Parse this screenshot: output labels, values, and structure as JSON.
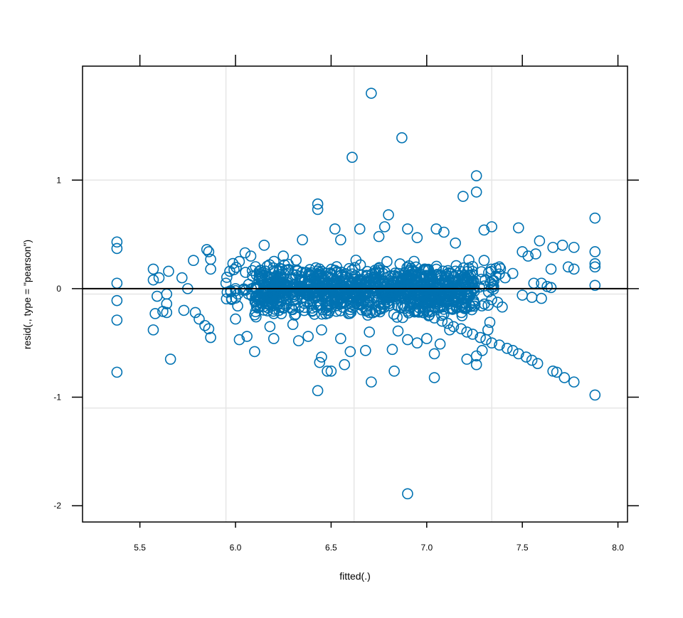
{
  "chart_data": {
    "type": "scatter",
    "title": "",
    "xlabel": "fitted(.)",
    "ylabel": "resid(., type = \"pearson\")",
    "xlim": [
      5.2,
      8.05
    ],
    "ylim": [
      -2.15,
      2.05
    ],
    "x_ticks": [
      5.5,
      6.0,
      6.5,
      7.0,
      7.5,
      8.0
    ],
    "x_tick_labels": [
      "5.5",
      "6.0",
      "6.5",
      "7.0",
      "7.5",
      "8.0"
    ],
    "y_ticks": [
      -2,
      -1,
      0,
      1
    ],
    "y_tick_labels": [
      "-2",
      "-1",
      "0",
      "1"
    ],
    "x_grid": [
      5.95,
      6.62,
      7.34
    ],
    "y_grid": [
      -0.05,
      1.0,
      -1.1
    ],
    "reference_line_y": 0,
    "grid": true,
    "point_color": "#0072b2",
    "grid_color": "#e6e6e6",
    "series": [
      {
        "points": [
          [
            6.71,
            1.8
          ],
          [
            6.87,
            1.39
          ],
          [
            6.61,
            1.21
          ],
          [
            7.26,
            1.04
          ],
          [
            7.26,
            0.89
          ],
          [
            7.19,
            0.85
          ],
          [
            6.43,
            0.78
          ],
          [
            6.43,
            0.73
          ],
          [
            6.8,
            0.68
          ],
          [
            7.88,
            0.65
          ],
          [
            7.34,
            0.57
          ],
          [
            7.48,
            0.56
          ],
          [
            6.52,
            0.55
          ],
          [
            6.78,
            0.57
          ],
          [
            6.9,
            0.55
          ],
          [
            7.05,
            0.55
          ],
          [
            7.3,
            0.54
          ],
          [
            7.09,
            0.52
          ],
          [
            6.65,
            0.55
          ],
          [
            5.38,
            0.43
          ],
          [
            5.38,
            0.37
          ],
          [
            7.59,
            0.44
          ],
          [
            7.88,
            0.34
          ],
          [
            7.88,
            0.23
          ],
          [
            7.88,
            0.2
          ],
          [
            7.88,
            0.03
          ],
          [
            7.77,
            0.38
          ],
          [
            7.71,
            0.4
          ],
          [
            7.66,
            0.38
          ],
          [
            7.74,
            0.2
          ],
          [
            7.77,
            0.18
          ],
          [
            7.65,
            0.18
          ],
          [
            7.63,
            0.02
          ],
          [
            7.65,
            0.01
          ],
          [
            5.85,
            0.36
          ],
          [
            5.86,
            0.34
          ],
          [
            5.78,
            0.26
          ],
          [
            5.87,
            0.27
          ],
          [
            5.87,
            0.18
          ],
          [
            5.57,
            0.18
          ],
          [
            5.65,
            0.16
          ],
          [
            5.57,
            0.08
          ],
          [
            5.6,
            0.1
          ],
          [
            5.38,
            0.05
          ],
          [
            5.72,
            0.1
          ],
          [
            5.75,
            0.0
          ],
          [
            5.59,
            -0.07
          ],
          [
            5.64,
            -0.05
          ],
          [
            5.64,
            -0.14
          ],
          [
            5.38,
            -0.11
          ],
          [
            5.62,
            -0.21
          ],
          [
            5.64,
            -0.22
          ],
          [
            5.58,
            -0.23
          ],
          [
            5.73,
            -0.2
          ],
          [
            5.79,
            -0.22
          ],
          [
            5.81,
            -0.28
          ],
          [
            5.84,
            -0.34
          ],
          [
            5.86,
            -0.37
          ],
          [
            5.87,
            -0.45
          ],
          [
            5.38,
            -0.29
          ],
          [
            5.57,
            -0.38
          ],
          [
            5.38,
            -0.77
          ],
          [
            5.66,
            -0.65
          ],
          [
            6.43,
            -0.94
          ],
          [
            6.48,
            -0.76
          ],
          [
            6.5,
            -0.76
          ],
          [
            6.44,
            -0.68
          ],
          [
            6.45,
            -0.63
          ],
          [
            6.57,
            -0.7
          ],
          [
            6.71,
            -0.86
          ],
          [
            6.83,
            -0.76
          ],
          [
            7.04,
            -0.82
          ],
          [
            7.04,
            -0.6
          ],
          [
            7.21,
            -0.65
          ],
          [
            7.26,
            -0.62
          ],
          [
            7.26,
            -0.7
          ],
          [
            7.29,
            -0.57
          ],
          [
            6.9,
            -1.89
          ],
          [
            7.88,
            -0.98
          ],
          [
            7.77,
            -0.86
          ],
          [
            7.72,
            -0.82
          ],
          [
            7.66,
            -0.76
          ],
          [
            7.68,
            -0.77
          ],
          [
            7.58,
            -0.69
          ],
          [
            7.55,
            -0.66
          ],
          [
            7.52,
            -0.63
          ],
          [
            7.48,
            -0.6
          ],
          [
            7.45,
            -0.57
          ],
          [
            7.42,
            -0.55
          ],
          [
            7.38,
            -0.52
          ],
          [
            7.34,
            -0.5
          ],
          [
            7.31,
            -0.47
          ],
          [
            7.28,
            -0.45
          ],
          [
            7.24,
            -0.42
          ],
          [
            7.21,
            -0.4
          ],
          [
            7.18,
            -0.37
          ],
          [
            7.14,
            -0.35
          ],
          [
            7.11,
            -0.32
          ],
          [
            7.08,
            -0.3
          ],
          [
            7.04,
            -0.27
          ],
          [
            7.01,
            -0.25
          ],
          [
            6.98,
            -0.22
          ],
          [
            6.94,
            -0.2
          ],
          [
            6.91,
            -0.18
          ],
          [
            6.02,
            -0.47
          ],
          [
            6.06,
            -0.44
          ],
          [
            6.1,
            -0.58
          ],
          [
            6.2,
            -0.46
          ],
          [
            6.33,
            -0.48
          ],
          [
            6.38,
            -0.44
          ],
          [
            6.55,
            -0.46
          ],
          [
            6.6,
            -0.58
          ],
          [
            6.68,
            -0.57
          ],
          [
            6.82,
            -0.56
          ],
          [
            6.9,
            -0.47
          ],
          [
            6.95,
            -0.5
          ],
          [
            7.07,
            -0.51
          ],
          [
            7.0,
            -0.46
          ],
          [
            7.12,
            -0.38
          ],
          [
            7.33,
            -0.31
          ],
          [
            7.32,
            -0.38
          ],
          [
            7.55,
            -0.08
          ],
          [
            7.5,
            -0.06
          ],
          [
            7.6,
            -0.09
          ],
          [
            7.56,
            0.05
          ],
          [
            7.6,
            0.05
          ],
          [
            7.53,
            0.3
          ],
          [
            7.57,
            0.32
          ],
          [
            7.5,
            0.34
          ],
          [
            7.41,
            0.1
          ],
          [
            7.45,
            0.14
          ],
          [
            7.35,
            0.02
          ],
          [
            7.38,
            0.2
          ],
          [
            7.3,
            0.26
          ],
          [
            6.0,
            0.0
          ],
          [
            5.95,
            0.05
          ],
          [
            5.98,
            -0.1
          ],
          [
            5.97,
            0.16
          ],
          [
            6.0,
            -0.28
          ],
          [
            6.02,
            0.25
          ],
          [
            6.05,
            0.33
          ],
          [
            6.08,
            0.3
          ],
          [
            6.15,
            0.4
          ],
          [
            6.25,
            0.3
          ],
          [
            6.35,
            0.45
          ],
          [
            6.55,
            0.45
          ],
          [
            6.75,
            0.48
          ],
          [
            6.95,
            0.47
          ],
          [
            7.15,
            0.42
          ],
          [
            6.18,
            -0.35
          ],
          [
            6.3,
            -0.33
          ],
          [
            6.45,
            -0.38
          ],
          [
            6.7,
            -0.4
          ],
          [
            6.85,
            -0.39
          ]
        ],
        "dense_regions": [
          {
            "x": [
              6.1,
              7.25
            ],
            "y": [
              -0.26,
              0.23
            ]
          },
          {
            "x": [
              5.95,
              7.4
            ],
            "y": [
              -0.3,
              0.3
            ]
          }
        ]
      }
    ]
  }
}
